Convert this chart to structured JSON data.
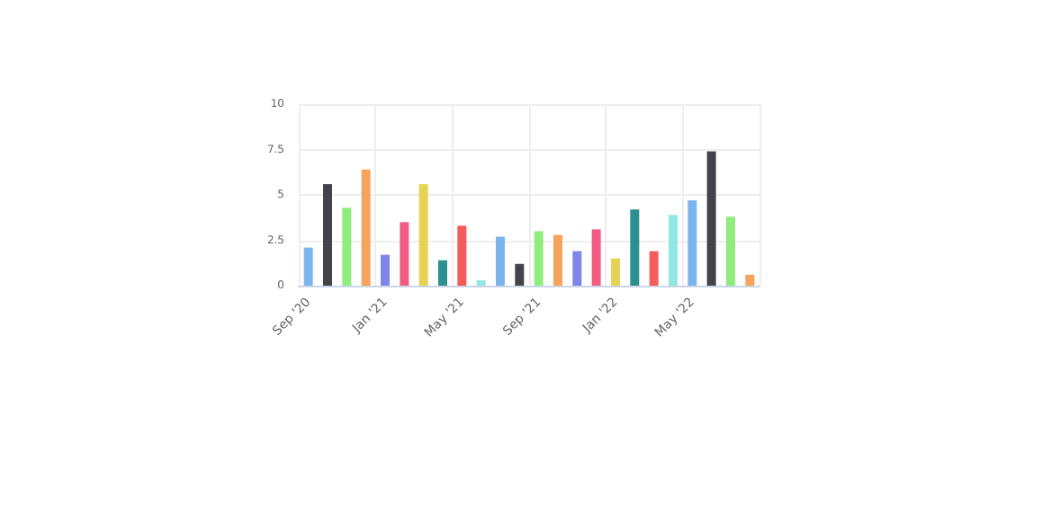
{
  "chart_data": {
    "type": "bar",
    "categories": [
      "Sep '20",
      null,
      null,
      null,
      "Jan '21",
      null,
      null,
      null,
      "May '21",
      null,
      null,
      null,
      "Sep '21",
      null,
      null,
      null,
      "Jan '22",
      null,
      null,
      null,
      "May '22",
      null,
      null,
      null
    ],
    "values": [
      2.1,
      5.6,
      4.3,
      6.4,
      1.7,
      3.5,
      5.6,
      1.4,
      3.3,
      0.3,
      2.7,
      1.2,
      3.0,
      2.8,
      1.9,
      3.1,
      1.5,
      4.2,
      1.9,
      3.9,
      4.7,
      7.4,
      3.8,
      0.6
    ],
    "colors": [
      "#7cb5ec",
      "#434348",
      "#90ed7d",
      "#f7a35c",
      "#8085e9",
      "#f15c80",
      "#e4d354",
      "#2b908f",
      "#f45b5b",
      "#91e8e1",
      "#7cb5ec",
      "#434348",
      "#90ed7d",
      "#f7a35c",
      "#8085e9",
      "#f15c80",
      "#e4d354",
      "#2b908f",
      "#f45b5b",
      "#91e8e1",
      "#7cb5ec",
      "#434348",
      "#90ed7d",
      "#f7a35c"
    ],
    "ylim": [
      0,
      10
    ],
    "yticks": [
      0,
      2.5,
      5,
      7.5,
      10
    ],
    "grid": true
  }
}
